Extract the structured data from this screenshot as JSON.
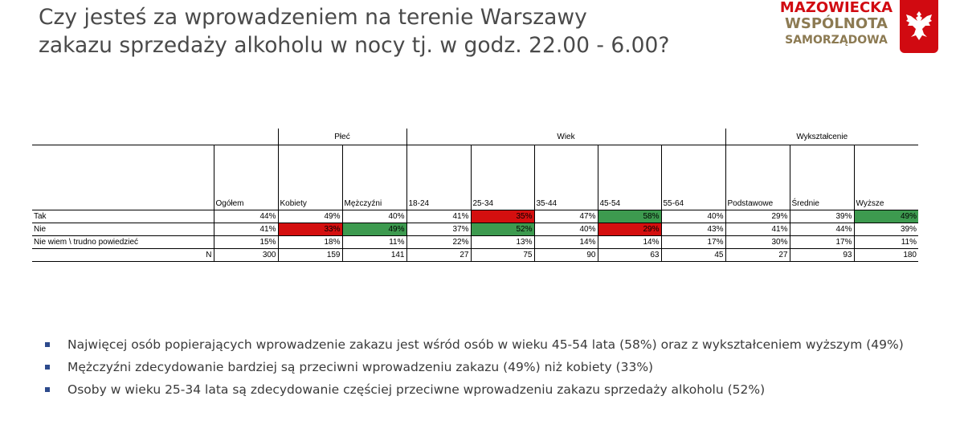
{
  "title_line1": "Czy jesteś za wprowadzeniem na terenie Warszawy",
  "title_line2": "zakazu sprzedaży alkoholu w nocy tj. w godz. 22.00 - 6.00?",
  "logo": {
    "line1": "MAZOWIECKA",
    "line2": "WSPÓLNOTA",
    "line3": "SAMORZĄDOWA",
    "red": "#d10a11",
    "gold": "#8c7a52",
    "emblem": "white-eagle-icon"
  },
  "table": {
    "groups": {
      "plec": "Płeć",
      "wiek": "Wiek",
      "wyksztalcenie": "Wykształcenie"
    },
    "columns": [
      "Ogółem",
      "Kobiety",
      "Mężczyźni",
      "18-24",
      "25-34",
      "35-44",
      "45-54",
      "55-64",
      "Podstawowe",
      "Średnie",
      "Wyższe"
    ],
    "rows": [
      {
        "label": "Tak",
        "values": [
          "44%",
          "49%",
          "40%",
          "41%",
          "35%",
          "47%",
          "58%",
          "40%",
          "29%",
          "39%",
          "49%"
        ]
      },
      {
        "label": "Nie",
        "values": [
          "41%",
          "33%",
          "49%",
          "37%",
          "52%",
          "40%",
          "29%",
          "43%",
          "41%",
          "44%",
          "39%"
        ]
      },
      {
        "label": "Nie wiem \\ trudno powiedzieć",
        "values": [
          "15%",
          "18%",
          "11%",
          "22%",
          "13%",
          "14%",
          "14%",
          "17%",
          "30%",
          "17%",
          "11%"
        ]
      },
      {
        "label": "N",
        "values": [
          "300",
          "159",
          "141",
          "27",
          "75",
          "90",
          "63",
          "45",
          "27",
          "93",
          "180"
        ]
      }
    ],
    "highlight_colors": {
      "red": "#d40f0f",
      "green": "#3d9a4f"
    }
  },
  "bullets": [
    "Najwięcej osób popierających wprowadzenie zakazu jest wśród osób  w wieku 45-54 lata (58%) oraz z wykształceniem wyższym (49%)",
    "Mężczyźni zdecydowanie bardziej są przeciwni wprowadzeniu zakazu (49%) niż kobiety (33%)",
    "Osoby w wieku 25-34 lata są zdecydowanie częściej przeciwne wprowadzeniu zakazu sprzedaży alkoholu (52%)"
  ]
}
